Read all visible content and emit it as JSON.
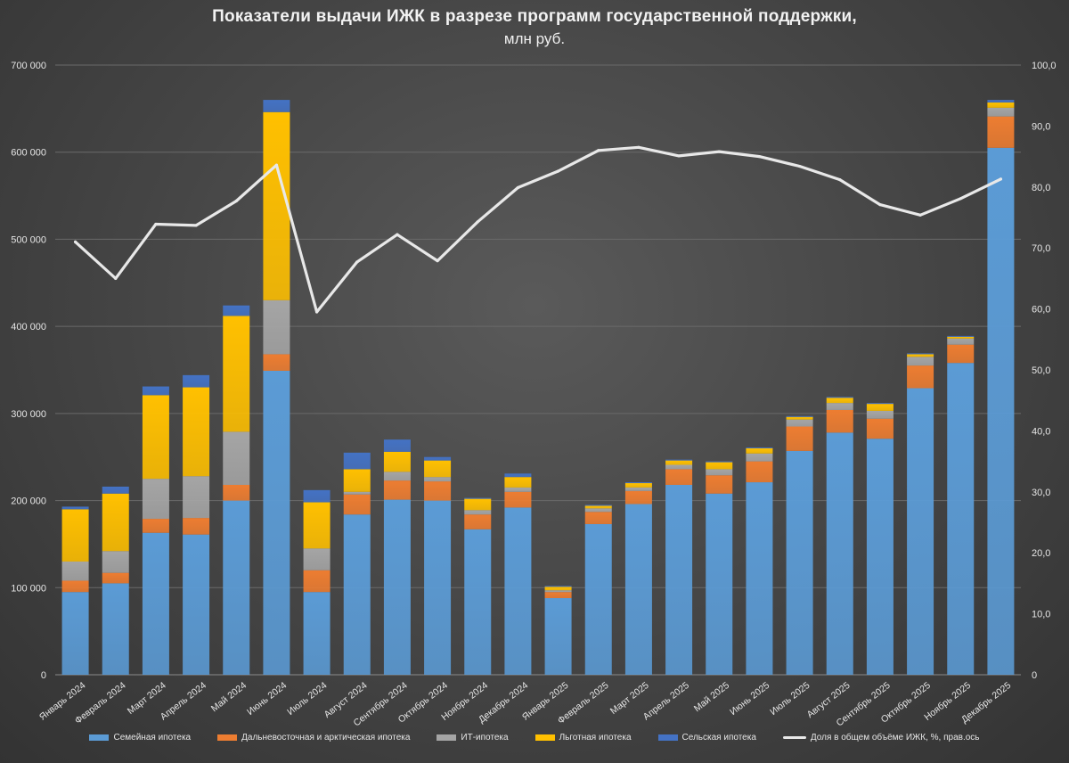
{
  "chart_data": {
    "type": "bar",
    "stacked": true,
    "title": "Показатели выдачи ИЖК в разрезе программ государственной поддержки,",
    "subtitle": "млн руб.",
    "categories": [
      "Январь 2024",
      "Февраль 2024",
      "Март 2024",
      "Апрель 2024",
      "Май 2024",
      "Июнь 2024",
      "Июль 2024",
      "Август 2024",
      "Сентябрь 2024",
      "Октябрь 2024",
      "Ноябрь 2024",
      "Декабрь 2024",
      "Январь 2025",
      "Февраль 2025",
      "Март 2025",
      "Апрель 2025",
      "Май 2025",
      "Июнь 2025",
      "Июль 2025",
      "Август 2025",
      "Сентябрь 2025",
      "Октябрь 2025",
      "Ноябрь 2025",
      "Декабрь 2025"
    ],
    "series": [
      {
        "name": "Семейная ипотека",
        "color": "#5b9bd5",
        "values": [
          95000,
          105000,
          163000,
          161000,
          200000,
          349000,
          95000,
          184000,
          201000,
          200000,
          167000,
          192000,
          88000,
          173000,
          196000,
          218000,
          208000,
          221000,
          257000,
          278000,
          271000,
          329000,
          358000,
          605000
        ]
      },
      {
        "name": "Дальневосточная и арктическая ипотека",
        "color": "#ed7d31",
        "values": [
          13000,
          12000,
          16000,
          19000,
          18000,
          19000,
          25000,
          23000,
          22000,
          22000,
          17000,
          18000,
          7000,
          14000,
          15000,
          18000,
          21000,
          24000,
          28000,
          26000,
          23000,
          26000,
          21000,
          36000
        ]
      },
      {
        "name": "ИТ-ипотека",
        "color": "#a5a5a5",
        "values": [
          22000,
          25000,
          46000,
          48000,
          61000,
          62000,
          25000,
          3000,
          10000,
          5000,
          5000,
          5000,
          2000,
          4000,
          4000,
          5000,
          7000,
          9000,
          8000,
          8000,
          9000,
          10000,
          7000,
          10000
        ]
      },
      {
        "name": "Льготная ипотека",
        "color": "#ffc000",
        "values": [
          60000,
          66000,
          96000,
          102000,
          133000,
          216000,
          53000,
          26000,
          23000,
          19000,
          13000,
          12000,
          4000,
          3000,
          5000,
          5000,
          8000,
          6000,
          3000,
          6000,
          8000,
          3000,
          2000,
          6000
        ]
      },
      {
        "name": "Сельская ипотека",
        "color": "#4472c4",
        "values": [
          3000,
          8000,
          10000,
          14000,
          12000,
          14000,
          14000,
          19000,
          14000,
          4000,
          1000,
          4000,
          1000,
          1000,
          1000,
          1000,
          1000,
          1000,
          1000,
          1000,
          1000,
          1000,
          1000,
          3000
        ]
      }
    ],
    "line": {
      "name": "Доля в общем объёме ИЖК, %, прав.ось",
      "color": "#e8e8e8",
      "values": [
        71.0,
        65.0,
        73.9,
        73.7,
        77.7,
        83.6,
        59.5,
        67.7,
        72.2,
        67.9,
        74.3,
        79.9,
        82.6,
        86.0,
        86.5,
        85.1,
        85.8,
        85.0,
        83.4,
        81.2,
        77.1,
        75.4,
        78.1,
        81.3
      ]
    },
    "ylim_left": [
      0,
      700000
    ],
    "ylim_right": [
      0,
      100
    ],
    "yticks_left": [
      "0",
      "100 000",
      "200 000",
      "300 000",
      "400 000",
      "500 000",
      "600 000",
      "700 000"
    ],
    "yticks_right": [
      "0",
      "10,0",
      "20,0",
      "30,0",
      "40,0",
      "50,0",
      "60,0",
      "70,0",
      "80,0",
      "90,0",
      "100,0"
    ],
    "legend_position": "bottom"
  }
}
